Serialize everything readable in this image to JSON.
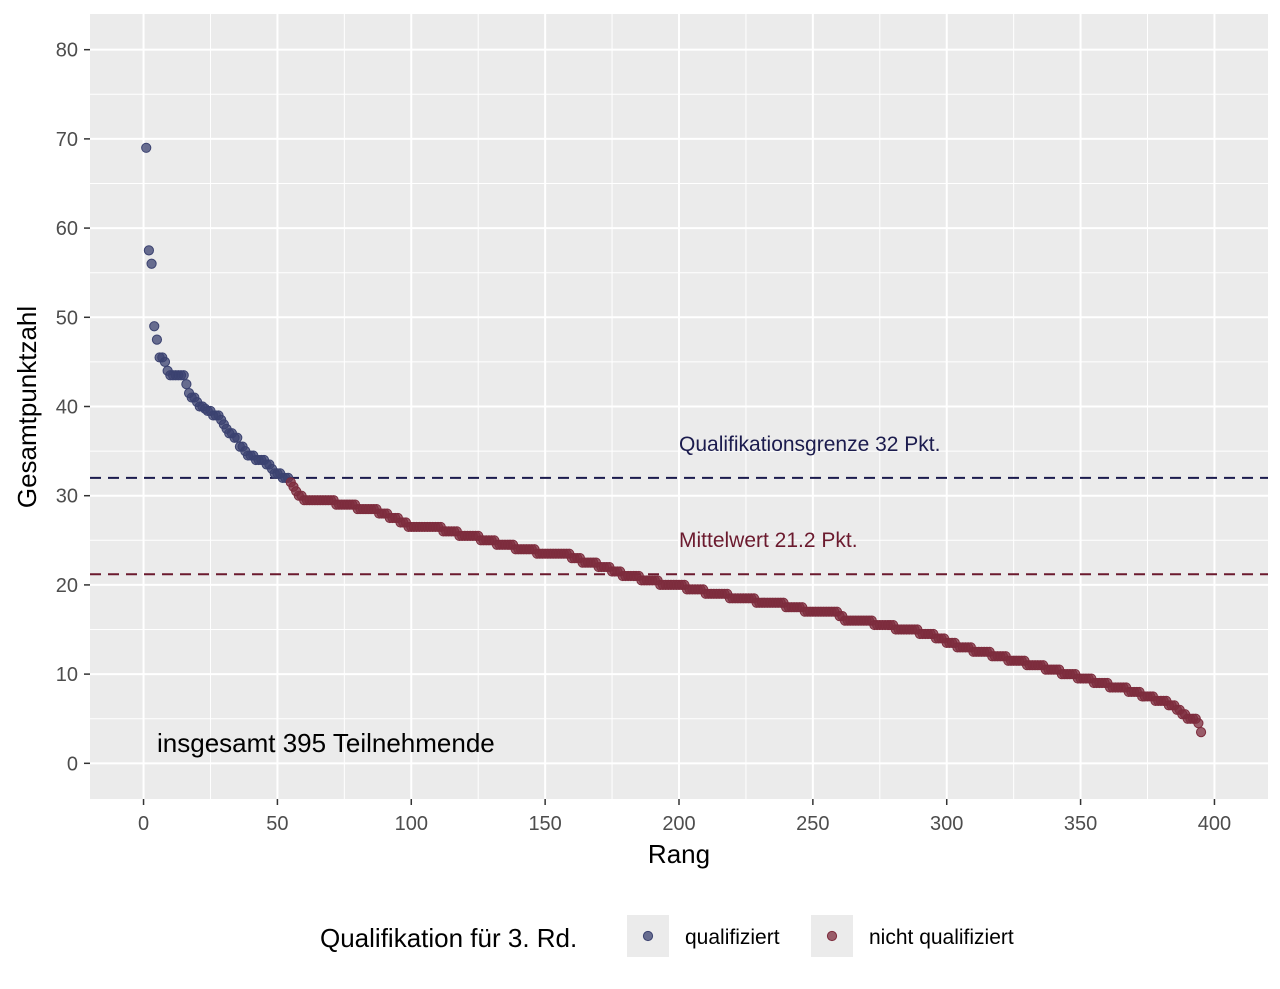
{
  "chart_data": {
    "type": "scatter",
    "xlabel": "Rang",
    "ylabel": "Gesamtpunktzahl",
    "xlim": [
      -20,
      420
    ],
    "ylim": [
      -4,
      84
    ],
    "x_ticks": [
      0,
      50,
      100,
      150,
      200,
      250,
      300,
      350,
      400
    ],
    "y_ticks": [
      0,
      10,
      20,
      30,
      40,
      50,
      60,
      70,
      80
    ],
    "x_tick_labels": [
      "0",
      "50",
      "100",
      "150",
      "200",
      "250",
      "300",
      "350",
      "400"
    ],
    "y_tick_labels": [
      "0",
      "10",
      "20",
      "30",
      "40",
      "50",
      "60",
      "70",
      "80"
    ],
    "grid": true,
    "total_n": 395,
    "annotation": "insgesamt 395 Teilnehmende",
    "reference_lines": [
      {
        "name": "qualification",
        "y": 32,
        "label": "Qualifikationsgrenze 32 Pkt.",
        "color": "#1b1b4d",
        "label_x": 200
      },
      {
        "name": "mean",
        "y": 21.2,
        "label": "Mittelwert 21.2 Pkt.",
        "color": "#6b1a2e",
        "label_x": 200
      }
    ],
    "series": [
      {
        "name": "qualifiziert",
        "color": "#3b4270",
        "points": [
          [
            1,
            69
          ],
          [
            2,
            57.5
          ],
          [
            3,
            56
          ],
          [
            4,
            49
          ],
          [
            5,
            47.5
          ],
          [
            6,
            45.5
          ],
          [
            7,
            45.5
          ],
          [
            8,
            45
          ],
          [
            9,
            44
          ],
          [
            10,
            43.5
          ],
          [
            11,
            43.5
          ],
          [
            12,
            43.5
          ],
          [
            13,
            43.5
          ],
          [
            14,
            43.5
          ],
          [
            15,
            43.5
          ],
          [
            16,
            42.5
          ],
          [
            17,
            41.5
          ],
          [
            18,
            41
          ],
          [
            19,
            41
          ],
          [
            20,
            40.5
          ],
          [
            21,
            40
          ],
          [
            22,
            40
          ],
          [
            23,
            39.75
          ],
          [
            24,
            39.5
          ],
          [
            25,
            39.5
          ],
          [
            26,
            39
          ],
          [
            27,
            39
          ],
          [
            28,
            39
          ],
          [
            29,
            38.5
          ],
          [
            30,
            38
          ],
          [
            31,
            37.5
          ],
          [
            32,
            37
          ],
          [
            33,
            37
          ],
          [
            34,
            36.5
          ],
          [
            35,
            36.5
          ],
          [
            36,
            35.5
          ],
          [
            37,
            35.5
          ],
          [
            38,
            35
          ],
          [
            39,
            34.5
          ],
          [
            40,
            34.5
          ],
          [
            41,
            34.5
          ],
          [
            42,
            34
          ],
          [
            43,
            34
          ],
          [
            44,
            34
          ],
          [
            45,
            34
          ],
          [
            46,
            33.5
          ],
          [
            47,
            33.5
          ],
          [
            48,
            33
          ],
          [
            49,
            32.5
          ],
          [
            50,
            32.5
          ],
          [
            51,
            32.5
          ],
          [
            52,
            32
          ],
          [
            53,
            32
          ],
          [
            54,
            32
          ]
        ]
      },
      {
        "name": "nicht qualifiziert",
        "color": "#7d2c3d",
        "segments": [
          [
            55,
            31.5
          ],
          [
            56,
            31
          ],
          [
            57,
            30.5
          ],
          [
            58,
            30
          ],
          [
            60,
            29.5
          ],
          [
            70,
            29.5
          ],
          [
            73,
            29
          ],
          [
            85,
            28.5
          ],
          [
            93,
            27.5
          ],
          [
            97,
            27
          ],
          [
            100,
            26.5
          ],
          [
            110,
            26.5
          ],
          [
            113,
            26
          ],
          [
            122,
            25.5
          ],
          [
            129,
            25
          ],
          [
            134,
            24.5
          ],
          [
            142,
            24
          ],
          [
            150,
            23.5
          ],
          [
            158,
            23.5
          ],
          [
            160,
            23
          ],
          [
            166,
            22.5
          ],
          [
            172,
            22
          ],
          [
            177,
            21.5
          ],
          [
            180,
            21
          ],
          [
            190,
            20.5
          ],
          [
            195,
            20
          ],
          [
            200,
            20
          ],
          [
            205,
            19.5
          ],
          [
            214,
            19
          ],
          [
            222,
            18.5
          ],
          [
            235,
            18
          ],
          [
            244,
            17.5
          ],
          [
            248,
            17
          ],
          [
            258,
            17
          ],
          [
            262,
            16
          ],
          [
            270,
            16
          ],
          [
            275,
            15.5
          ],
          [
            285,
            15
          ],
          [
            293,
            14.5
          ],
          [
            298,
            14
          ],
          [
            305,
            13
          ],
          [
            314,
            12.5
          ],
          [
            318,
            12
          ],
          [
            326,
            11.5
          ],
          [
            333,
            11
          ],
          [
            340,
            10.5
          ],
          [
            345,
            10
          ],
          [
            352,
            9.5
          ],
          [
            356,
            9
          ],
          [
            365,
            8.5
          ],
          [
            370,
            8
          ],
          [
            375,
            7.5
          ],
          [
            380,
            7
          ],
          [
            384,
            6.5
          ],
          [
            388,
            5.5
          ],
          [
            390,
            5
          ],
          [
            393,
            5
          ],
          [
            394,
            4.5
          ],
          [
            395,
            3.5
          ]
        ]
      }
    ],
    "legend": {
      "title": "Qualifikation für 3. Rd.",
      "position": "bottom",
      "items": [
        {
          "label": "qualifiziert",
          "color": "#3b4270"
        },
        {
          "label": "nicht qualifiziert",
          "color": "#7d2c3d"
        }
      ]
    }
  }
}
